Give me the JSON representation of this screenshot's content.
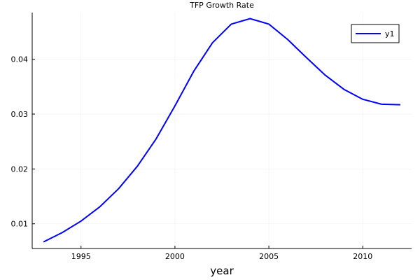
{
  "chart_data": {
    "type": "line",
    "title": "TFP Growth Rate",
    "xlabel": "year",
    "ylabel": "",
    "xlim": [
      1992.4,
      2012.6
    ],
    "ylim": [
      0.0055,
      0.0485
    ],
    "xticks": [
      1995,
      2000,
      2005,
      2010
    ],
    "yticks": [
      0.01,
      0.02,
      0.03,
      0.04
    ],
    "xtick_labels": [
      "1995",
      "2000",
      "2005",
      "2010"
    ],
    "ytick_labels": [
      "0.01",
      "0.02",
      "0.03",
      "0.04"
    ],
    "grid": true,
    "legend_position": "top-right",
    "series": [
      {
        "name": "y1",
        "color": "#0000ff",
        "x": [
          1993,
          1994,
          1995,
          1996,
          1997,
          1998,
          1999,
          2000,
          2001,
          2002,
          2003,
          2004,
          2005,
          2006,
          2007,
          2008,
          2009,
          2010,
          2011,
          2012
        ],
        "y": [
          0.0067,
          0.0084,
          0.0105,
          0.0131,
          0.0164,
          0.0205,
          0.0255,
          0.0315,
          0.0378,
          0.043,
          0.0464,
          0.0474,
          0.0464,
          0.0436,
          0.0403,
          0.0371,
          0.0345,
          0.0327,
          0.0318,
          0.0317
        ]
      }
    ]
  }
}
